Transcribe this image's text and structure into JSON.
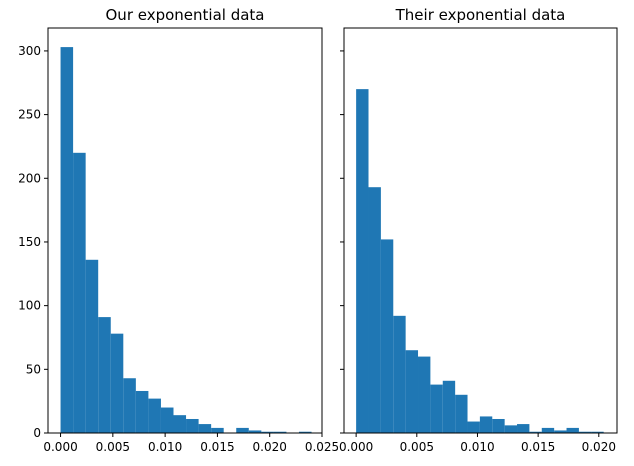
{
  "chart_data": [
    {
      "type": "bar",
      "title": "Our exponential data",
      "xlabel": "",
      "ylabel": "",
      "bar_color": "#1f77b4",
      "xlim": [
        -0.0012,
        0.025
      ],
      "ylim": [
        0,
        318
      ],
      "bin_start": 0.0,
      "bin_width": 0.0012,
      "values": [
        303,
        220,
        136,
        91,
        78,
        43,
        33,
        27,
        20,
        14,
        11,
        7,
        4,
        0,
        4,
        2,
        1,
        1,
        0,
        1
      ],
      "xticks": [
        0.0,
        0.005,
        0.01,
        0.015,
        0.02,
        0.025
      ],
      "xtick_labels": [
        "0.000",
        "0.005",
        "0.010",
        "0.015",
        "0.020",
        "0.025"
      ],
      "yticks": [
        0,
        50,
        100,
        150,
        200,
        250,
        300
      ],
      "ytick_labels": [
        "0",
        "50",
        "100",
        "150",
        "200",
        "250",
        "300"
      ],
      "show_ytick_labels": true,
      "grid": false
    },
    {
      "type": "bar",
      "title": "Their exponential data",
      "xlabel": "",
      "ylabel": "",
      "bar_color": "#1f77b4",
      "xlim": [
        -0.001,
        0.0215
      ],
      "ylim": [
        0,
        318
      ],
      "bin_start": 0.0,
      "bin_width": 0.00102,
      "values": [
        270,
        193,
        152,
        92,
        65,
        60,
        38,
        41,
        30,
        9,
        13,
        11,
        6,
        7,
        1,
        4,
        2,
        4,
        1,
        1
      ],
      "xticks": [
        0.0,
        0.005,
        0.01,
        0.015,
        0.02
      ],
      "xtick_labels": [
        "0.000",
        "0.005",
        "0.010",
        "0.015",
        "0.020"
      ],
      "yticks": [
        0,
        50,
        100,
        150,
        200,
        250,
        300
      ],
      "ytick_labels": [
        "0",
        "50",
        "100",
        "150",
        "200",
        "250",
        "300"
      ],
      "show_ytick_labels": false,
      "grid": false
    }
  ]
}
